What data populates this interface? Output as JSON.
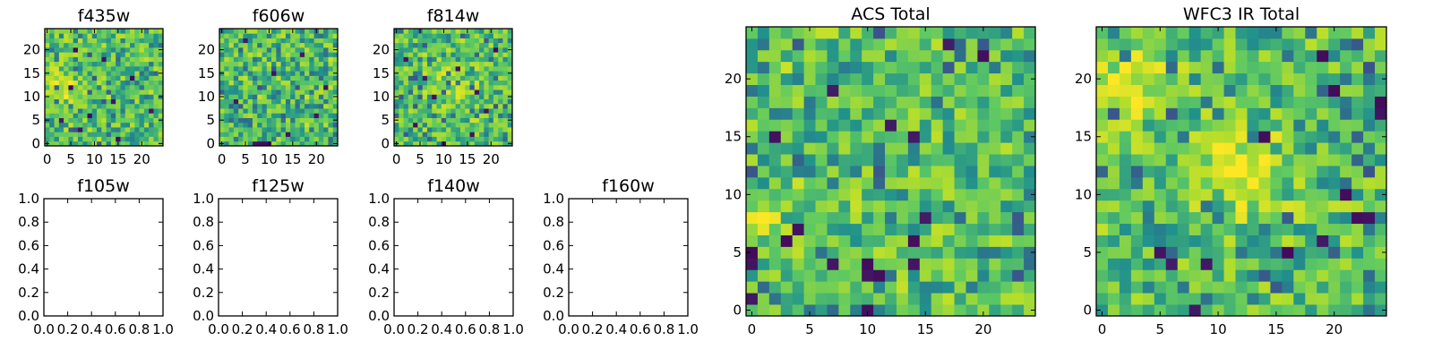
{
  "figure": {
    "colormap": [
      "#440154",
      "#3b528b",
      "#21918c",
      "#5ec962",
      "#b5de2b",
      "#fde725"
    ],
    "background": "#ffffff"
  },
  "chart_data": [
    {
      "id": "f435w",
      "type": "heatmap",
      "title": "f435w",
      "grid_size": 25,
      "xlim": [
        -0.5,
        24.5
      ],
      "ylim": [
        -0.5,
        24.5
      ],
      "xticks": [
        0,
        5,
        10,
        15,
        20
      ],
      "yticks": [
        0,
        5,
        10,
        15,
        20
      ],
      "value_range": [
        0,
        1
      ],
      "seed": 435,
      "blobs": [
        {
          "x": 3,
          "y": 13,
          "amp": 0.25,
          "r": 3
        }
      ],
      "low_pixels": [
        [
          7,
          3
        ],
        [
          3,
          5
        ],
        [
          9,
          6
        ],
        [
          14,
          9
        ],
        [
          5,
          12
        ],
        [
          18,
          14
        ],
        [
          12,
          18
        ],
        [
          15,
          1
        ],
        [
          22,
          7
        ],
        [
          6,
          20
        ]
      ]
    },
    {
      "id": "f606w",
      "type": "heatmap",
      "title": "f606w",
      "grid_size": 25,
      "xlim": [
        -0.5,
        24.5
      ],
      "ylim": [
        -0.5,
        24.5
      ],
      "xticks": [
        0,
        5,
        10,
        15,
        20
      ],
      "yticks": [
        0,
        5,
        10,
        15,
        20
      ],
      "value_range": [
        0,
        1
      ],
      "seed": 606,
      "blobs": [],
      "low_pixels": [
        [
          7,
          0
        ],
        [
          8,
          0
        ],
        [
          9,
          0
        ],
        [
          10,
          0
        ],
        [
          14,
          2
        ],
        [
          3,
          9
        ],
        [
          20,
          6
        ],
        [
          11,
          15
        ],
        [
          17,
          19
        ],
        [
          5,
          22
        ],
        [
          22,
          12
        ]
      ]
    },
    {
      "id": "f814w",
      "type": "heatmap",
      "title": "f814w",
      "grid_size": 25,
      "xlim": [
        -0.5,
        24.5
      ],
      "ylim": [
        -0.5,
        24.5
      ],
      "xticks": [
        0,
        5,
        10,
        15,
        20
      ],
      "yticks": [
        0,
        5,
        10,
        15,
        20
      ],
      "value_range": [
        0,
        1
      ],
      "seed": 814,
      "blobs": [
        {
          "x": 12,
          "y": 12,
          "amp": 0.15,
          "r": 4
        }
      ],
      "low_pixels": [
        [
          10,
          0
        ],
        [
          4,
          4
        ],
        [
          16,
          2
        ],
        [
          8,
          10
        ],
        [
          19,
          7
        ],
        [
          13,
          16
        ],
        [
          2,
          18
        ],
        [
          21,
          20
        ],
        [
          6,
          14
        ],
        [
          17,
          11
        ]
      ]
    },
    {
      "id": "f105w",
      "type": "empty",
      "title": "f105w",
      "xlim": [
        0,
        1
      ],
      "ylim": [
        0,
        1
      ],
      "xticks": [
        0,
        0.2,
        0.4,
        0.6,
        0.8,
        1.0
      ],
      "yticks": [
        0,
        0.2,
        0.4,
        0.6,
        0.8,
        1.0
      ],
      "xtick_labels": [
        "0.0",
        "0.2",
        "0.4",
        "0.6",
        "0.8",
        "1.0"
      ],
      "ytick_labels": [
        "0.0",
        "0.2",
        "0.4",
        "0.6",
        "0.8",
        "1.0"
      ]
    },
    {
      "id": "f125w",
      "type": "empty",
      "title": "f125w",
      "xlim": [
        0,
        1
      ],
      "ylim": [
        0,
        1
      ],
      "xticks": [
        0,
        0.2,
        0.4,
        0.6,
        0.8,
        1.0
      ],
      "yticks": [
        0,
        0.2,
        0.4,
        0.6,
        0.8,
        1.0
      ],
      "xtick_labels": [
        "0.0",
        "0.2",
        "0.4",
        "0.6",
        "0.8",
        "1.0"
      ],
      "ytick_labels": [
        "0.0",
        "0.2",
        "0.4",
        "0.6",
        "0.8",
        "1.0"
      ]
    },
    {
      "id": "f140w",
      "type": "empty",
      "title": "f140w",
      "xlim": [
        0,
        1
      ],
      "ylim": [
        0,
        1
      ],
      "xticks": [
        0,
        0.2,
        0.4,
        0.6,
        0.8,
        1.0
      ],
      "yticks": [
        0,
        0.2,
        0.4,
        0.6,
        0.8,
        1.0
      ],
      "xtick_labels": [
        "0.0",
        "0.2",
        "0.4",
        "0.6",
        "0.8",
        "1.0"
      ],
      "ytick_labels": [
        "0.0",
        "0.2",
        "0.4",
        "0.6",
        "0.8",
        "1.0"
      ]
    },
    {
      "id": "f160w",
      "type": "empty",
      "title": "f160w",
      "xlim": [
        0,
        1
      ],
      "ylim": [
        0,
        1
      ],
      "xticks": [
        0,
        0.2,
        0.4,
        0.6,
        0.8,
        1.0
      ],
      "yticks": [
        0,
        0.2,
        0.4,
        0.6,
        0.8,
        1.0
      ],
      "xtick_labels": [
        "0.0",
        "0.2",
        "0.4",
        "0.6",
        "0.8",
        "1.0"
      ],
      "ytick_labels": [
        "0.0",
        "0.2",
        "0.4",
        "0.6",
        "0.8",
        "1.0"
      ]
    },
    {
      "id": "acs-total",
      "type": "heatmap",
      "title": "ACS Total",
      "grid_size": 25,
      "xlim": [
        -0.5,
        24.5
      ],
      "ylim": [
        -0.5,
        24.5
      ],
      "xticks": [
        0,
        5,
        10,
        15,
        20
      ],
      "yticks": [
        0,
        5,
        10,
        15,
        20
      ],
      "value_range": [
        0,
        1
      ],
      "seed": 1001,
      "blobs": [
        {
          "x": 0.5,
          "y": 8.5,
          "amp": 0.35,
          "r": 1.2
        }
      ],
      "low_pixels": [
        [
          17,
          23
        ],
        [
          20,
          22
        ],
        [
          10,
          3
        ],
        [
          11,
          3
        ],
        [
          10,
          4
        ],
        [
          0,
          1
        ],
        [
          0,
          4
        ],
        [
          3,
          6
        ],
        [
          7,
          4
        ],
        [
          10,
          0
        ],
        [
          14,
          4
        ],
        [
          14,
          6
        ],
        [
          4,
          7
        ],
        [
          14,
          15
        ],
        [
          12,
          16
        ],
        [
          7,
          19
        ],
        [
          15,
          8
        ],
        [
          0,
          5
        ],
        [
          2,
          15
        ]
      ]
    },
    {
      "id": "wfc3-ir-total",
      "type": "heatmap",
      "title": "WFC3 IR Total",
      "grid_size": 25,
      "xlim": [
        -0.5,
        24.5
      ],
      "ylim": [
        -0.5,
        24.5
      ],
      "xticks": [
        0,
        5,
        10,
        15,
        20
      ],
      "yticks": [
        0,
        5,
        10,
        15,
        20
      ],
      "value_range": [
        0,
        1
      ],
      "seed": 2002,
      "blobs": [
        {
          "x": 12,
          "y": 12.5,
          "amp": 0.4,
          "r": 2.5
        },
        {
          "x": 2,
          "y": 19,
          "amp": 0.25,
          "r": 3
        }
      ],
      "low_pixels": [
        [
          19,
          22
        ],
        [
          14,
          15
        ],
        [
          24,
          18
        ],
        [
          24,
          17
        ],
        [
          22,
          8
        ],
        [
          23,
          8
        ],
        [
          19,
          6
        ],
        [
          16,
          5
        ],
        [
          9,
          4
        ],
        [
          6,
          4
        ],
        [
          8,
          0
        ],
        [
          5,
          5
        ],
        [
          21,
          10
        ],
        [
          20,
          19
        ]
      ]
    }
  ]
}
